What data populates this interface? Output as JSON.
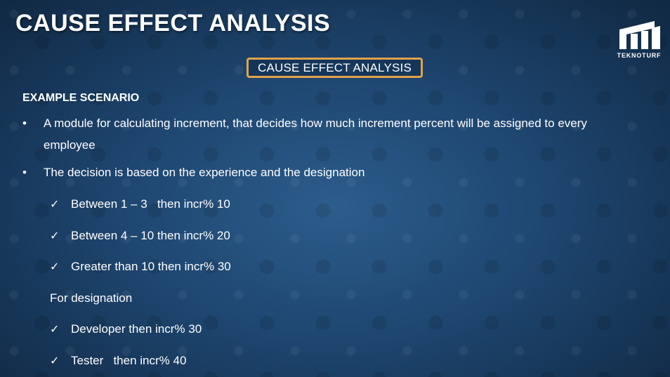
{
  "slide": {
    "title": "CAUSE EFFECT ANALYSIS",
    "boxed_heading": "CAUSE EFFECT ANALYSIS",
    "section_heading": "EXAMPLE SCENARIO",
    "logo": {
      "text": "TEKNOTURF",
      "icon": "teknoturf-logo-icon"
    },
    "bullets": [
      {
        "symbol": "•",
        "text": "A module for calculating  increment, that decides how much increment percent will be assigned to every employee"
      },
      {
        "symbol": "•",
        "text": "The decision is based on the experience and the designation"
      }
    ],
    "experience_checks": [
      {
        "symbol": "✓",
        "text": "Between 1 – 3   then incr% 10"
      },
      {
        "symbol": "✓",
        "text": "Between 4 – 10 then incr% 20"
      },
      {
        "symbol": "✓",
        "text": "Greater than 10 then incr% 30"
      }
    ],
    "designation_label": "For designation",
    "designation_checks": [
      {
        "symbol": "✓",
        "text": "Developer then incr% 30"
      },
      {
        "symbol": "✓",
        "text": "Tester   then incr% 40"
      }
    ]
  },
  "colors": {
    "accent_border": "#e1a24c",
    "background": "#1e4670",
    "text": "#ffffff"
  }
}
